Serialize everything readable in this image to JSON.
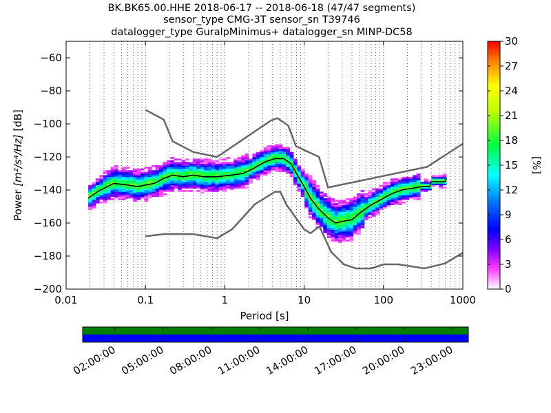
{
  "titles": {
    "line1": "BK.BK65.00.HHE   2018-06-17 -- 2018-06-18  (47/47 segments)",
    "line2": "sensor_type CMG-3T sensor_sn T39746",
    "line3": "datalogger_type GuralpMinimus+ datalogger_sn MINP-DC58"
  },
  "chart_data": {
    "type": "heatmap",
    "xlabel": "Period [s]",
    "ylabel": "Power [m²/s⁴/Hz] [dB]",
    "ylabel_prefix": "Power ",
    "ylabel_unit": "[m²/s⁴/Hz]",
    "ylabel_suffix": " [dB]",
    "xscale": "log",
    "xlim": [
      0.01,
      1000
    ],
    "ylim": [
      -200,
      -50
    ],
    "xticks": [
      0.01,
      0.1,
      1,
      10,
      100,
      1000
    ],
    "xtick_labels": [
      "0.01",
      "0.1",
      "1",
      "10",
      "100",
      "1000"
    ],
    "yticks": [
      -200,
      -180,
      -160,
      -140,
      -120,
      -100,
      -80,
      -60
    ],
    "ytick_labels": [
      "−200",
      "−180",
      "−160",
      "−140",
      "−120",
      "−100",
      "−80",
      "−60"
    ],
    "grid": "dotted vertical",
    "colorbar": {
      "label": "[%]",
      "range": [
        0,
        30
      ],
      "ticks": [
        0,
        3,
        6,
        9,
        12,
        15,
        18,
        21,
        24,
        27,
        30
      ],
      "tick_labels": [
        "0",
        "3",
        "6",
        "9",
        "12",
        "15",
        "18",
        "21",
        "24",
        "27",
        "30"
      ]
    },
    "noise_models": [
      {
        "name": "NHNM",
        "x": [
          0.1,
          0.17,
          0.22,
          0.4,
          0.8,
          3.8,
          4.6,
          6.3,
          7.9,
          15.4,
          20,
          354.8,
          1000
        ],
        "y": [
          -91.5,
          -97.4,
          -110.5,
          -117,
          -120,
          -98,
          -96.5,
          -101,
          -113.5,
          -120,
          -138.5,
          -126,
          -112
        ]
      },
      {
        "name": "NLNM",
        "x": [
          0.1,
          0.17,
          0.4,
          0.8,
          1.24,
          2.4,
          4.3,
          5,
          6,
          10,
          12,
          15.6,
          21.9,
          31.6,
          45,
          70,
          101,
          154,
          328,
          600,
          1000
        ],
        "y": [
          -168,
          -166.7,
          -166.7,
          -169.2,
          -163.7,
          -148.6,
          -141.1,
          -141.1,
          -149,
          -163.8,
          -166.2,
          -162.1,
          -177.5,
          -185,
          -187.5,
          -187.5,
          -185,
          -185,
          -187.5,
          -184.4,
          -178
        ]
      }
    ],
    "mean_psd": {
      "x": [
        0.019,
        0.025,
        0.03,
        0.04,
        0.06,
        0.08,
        0.1,
        0.13,
        0.17,
        0.22,
        0.3,
        0.4,
        0.55,
        0.8,
        1.2,
        1.7,
        2.3,
        3.2,
        4.3,
        5.5,
        6.8,
        8,
        10,
        12,
        15,
        20,
        25,
        30,
        40,
        50,
        70,
        100,
        130,
        170,
        230,
        300,
        380,
        400,
        600,
        620
      ],
      "y": [
        -145,
        -141,
        -139,
        -136,
        -137,
        -138,
        -137,
        -136,
        -133,
        -131,
        -132,
        -131,
        -132,
        -132,
        -131,
        -130,
        -127,
        -123,
        -121,
        -121,
        -124,
        -130,
        -138,
        -145,
        -151,
        -157,
        -160,
        -159,
        -158,
        -154,
        -149,
        -145,
        -142,
        -140,
        -139,
        -138,
        -138,
        -135,
        -135,
        -133
      ]
    },
    "timeline": {
      "tick_labels": [
        "02:00:00",
        "05:00:00",
        "08:00:00",
        "11:00:00",
        "14:00:00",
        "17:00:00",
        "20:00:00",
        "23:00:00"
      ],
      "tick_hours": [
        2,
        5,
        8,
        11,
        14,
        17,
        20,
        23
      ],
      "range_hours": [
        0,
        24
      ],
      "top_color": "#008000",
      "bottom_color": "#0000ff"
    }
  }
}
